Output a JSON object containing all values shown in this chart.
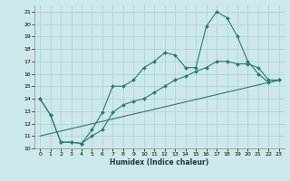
{
  "xlabel": "Humidex (Indice chaleur)",
  "bg_color": "#cce8e8",
  "line_color": "#2a7a6a",
  "grid_color": "#b0d0d0",
  "xlim": [
    -0.5,
    23.5
  ],
  "ylim": [
    10,
    21.5
  ],
  "yticks": [
    10,
    11,
    12,
    13,
    14,
    15,
    16,
    17,
    18,
    19,
    20,
    21
  ],
  "xticks": [
    0,
    1,
    2,
    3,
    4,
    5,
    6,
    7,
    8,
    9,
    10,
    11,
    12,
    13,
    14,
    15,
    16,
    17,
    18,
    19,
    20,
    21,
    22,
    23
  ],
  "line1_x": [
    0,
    1,
    2,
    3,
    4,
    5,
    6,
    7,
    8,
    9,
    10,
    11,
    12,
    13,
    14,
    15,
    16,
    17,
    18,
    19,
    20,
    21,
    22,
    23
  ],
  "line1_y": [
    14.0,
    12.7,
    10.5,
    10.5,
    10.4,
    11.5,
    12.9,
    15.0,
    15.0,
    15.5,
    16.5,
    17.0,
    17.7,
    17.5,
    16.5,
    16.5,
    19.8,
    21.0,
    20.5,
    19.0,
    17.0,
    16.0,
    15.3,
    15.5
  ],
  "line2_x": [
    0,
    1,
    2,
    3,
    4,
    5,
    6,
    7,
    8,
    9,
    10,
    11,
    12,
    13,
    14,
    15,
    16,
    17,
    18,
    19,
    20,
    21,
    22,
    23
  ],
  "line2_y": [
    14.0,
    12.7,
    10.5,
    10.5,
    10.4,
    11.0,
    11.5,
    12.9,
    13.5,
    13.8,
    14.0,
    14.5,
    15.0,
    15.5,
    15.8,
    16.2,
    16.5,
    17.0,
    17.0,
    16.8,
    16.8,
    16.5,
    15.5,
    15.5
  ],
  "line3_x": [
    0,
    23
  ],
  "line3_y": [
    11.0,
    15.5
  ]
}
